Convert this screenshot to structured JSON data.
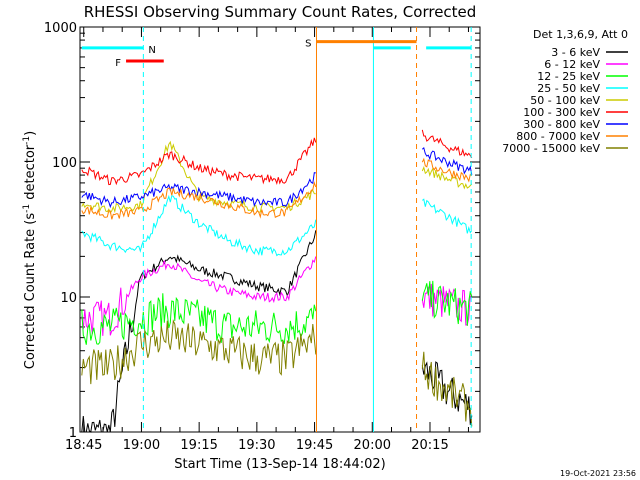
{
  "chart_data": {
    "type": "line",
    "title": "RHESSI Observing Summary Count Rates, Corrected",
    "xlabel": "Start Time (13-Sep-14 18:44:02)",
    "ylabel_main": "Corrected Count Rate (s",
    "ylabel_sup1": "-1",
    "ylabel_mid": " detector",
    "ylabel_sup2": "-1",
    "ylabel_end": ")",
    "yscale": "log",
    "ylim": [
      1,
      1000
    ],
    "xlim_min": [
      44.03,
      148
    ],
    "y_ticks": [
      "1",
      "10",
      "100",
      "1000"
    ],
    "x_ticks": [
      {
        "m": 45,
        "label": "18:45"
      },
      {
        "m": 60,
        "label": "19:00"
      },
      {
        "m": 75,
        "label": "19:15"
      },
      {
        "m": 90,
        "label": "19:30"
      },
      {
        "m": 105,
        "label": "19:45"
      },
      {
        "m": 120,
        "label": "20:00"
      },
      {
        "m": 135,
        "label": "20:15"
      }
    ],
    "legend_header": "Det 1,3,6,9, Att 0",
    "series": [
      {
        "name": "3 - 6 keV",
        "color": "#000000"
      },
      {
        "name": "6 - 12 keV",
        "color": "#ff00ff"
      },
      {
        "name": "12 - 25 keV",
        "color": "#00ff00"
      },
      {
        "name": "25 - 50 keV",
        "color": "#00ffff"
      },
      {
        "name": "50 - 100 keV",
        "color": "#cccc00"
      },
      {
        "name": "100 - 300 keV",
        "color": "#ff0000"
      },
      {
        "name": "300 - 800 keV",
        "color": "#0000ff"
      },
      {
        "name": "800 - 7000 keV",
        "color": "#ff8000"
      },
      {
        "name": "7000 - 15000 keV",
        "color": "#808000"
      }
    ],
    "segments": [
      [
        44.5,
        105.5
      ],
      [
        133,
        146
      ]
    ],
    "series_levels": {
      "3 - 6 keV": {
        "seg1": [
          1,
          1,
          14,
          20,
          16,
          14,
          12,
          11,
          30
        ],
        "seg2": [
          3,
          2,
          1.5
        ]
      },
      "6 - 12 keV": {
        "seg1": [
          7,
          7,
          14,
          18,
          13,
          11,
          10,
          10,
          20
        ],
        "seg2": [
          10,
          9,
          8
        ]
      },
      "12 - 25 keV": {
        "seg1": [
          6,
          6,
          7,
          8,
          7,
          6,
          6,
          6,
          7
        ],
        "seg2": [
          10,
          9,
          8
        ]
      },
      "25 - 50 keV": {
        "seg1": [
          30,
          24,
          22,
          55,
          35,
          26,
          22,
          22,
          35
        ],
        "seg2": [
          50,
          40,
          30
        ]
      },
      "50 - 100 keV": {
        "seg1": [
          50,
          45,
          48,
          140,
          55,
          50,
          46,
          46,
          60
        ],
        "seg2": [
          90,
          75,
          65
        ]
      },
      "100 - 300 keV": {
        "seg1": [
          90,
          72,
          80,
          115,
          90,
          80,
          75,
          75,
          150
        ],
        "seg2": [
          160,
          130,
          110
        ]
      },
      "300 - 800 keV": {
        "seg1": [
          58,
          50,
          55,
          65,
          60,
          55,
          50,
          50,
          80
        ],
        "seg2": [
          120,
          100,
          85
        ]
      },
      "800 - 7000 keV": {
        "seg1": [
          45,
          40,
          43,
          60,
          55,
          48,
          42,
          42,
          70
        ],
        "seg2": [
          100,
          85,
          75
        ]
      },
      "7000 - 15000 keV": {
        "seg1": [
          3,
          3,
          4.5,
          5,
          4.5,
          4,
          3.5,
          3.5,
          5
        ],
        "seg2": [
          3,
          2,
          1.5
        ]
      }
    },
    "attenuator_bars": [
      {
        "label": "N",
        "color": "#00ffff",
        "start_min": 44.5,
        "end_min": 60.5,
        "y": 700
      },
      {
        "label": "F",
        "color": "#ff0000",
        "start_min": 56,
        "end_min": 65.8,
        "y": 560
      },
      {
        "label": "S",
        "color": "#ff8000",
        "start_min": 105.5,
        "end_min": 131.5,
        "y": 780
      },
      {
        "label": "",
        "color": "#00ffff",
        "start_min": 120.3,
        "end_min": 130,
        "y": 700
      },
      {
        "label": "",
        "color": "#00ffff",
        "start_min": 134,
        "end_min": 145.7,
        "y": 700
      }
    ],
    "vertical_lines": [
      {
        "min": 60.5,
        "color": "#00ffff",
        "dashed": true
      },
      {
        "min": 105.5,
        "color": "#ff8000",
        "dashed": false
      },
      {
        "min": 120.3,
        "color": "#00ffff",
        "dashed": false
      },
      {
        "min": 131.5,
        "color": "#ff8000",
        "dashed": true
      },
      {
        "min": 145.7,
        "color": "#00ffff",
        "dashed": true
      }
    ],
    "footer_date": "19-Oct-2021 23:56"
  }
}
